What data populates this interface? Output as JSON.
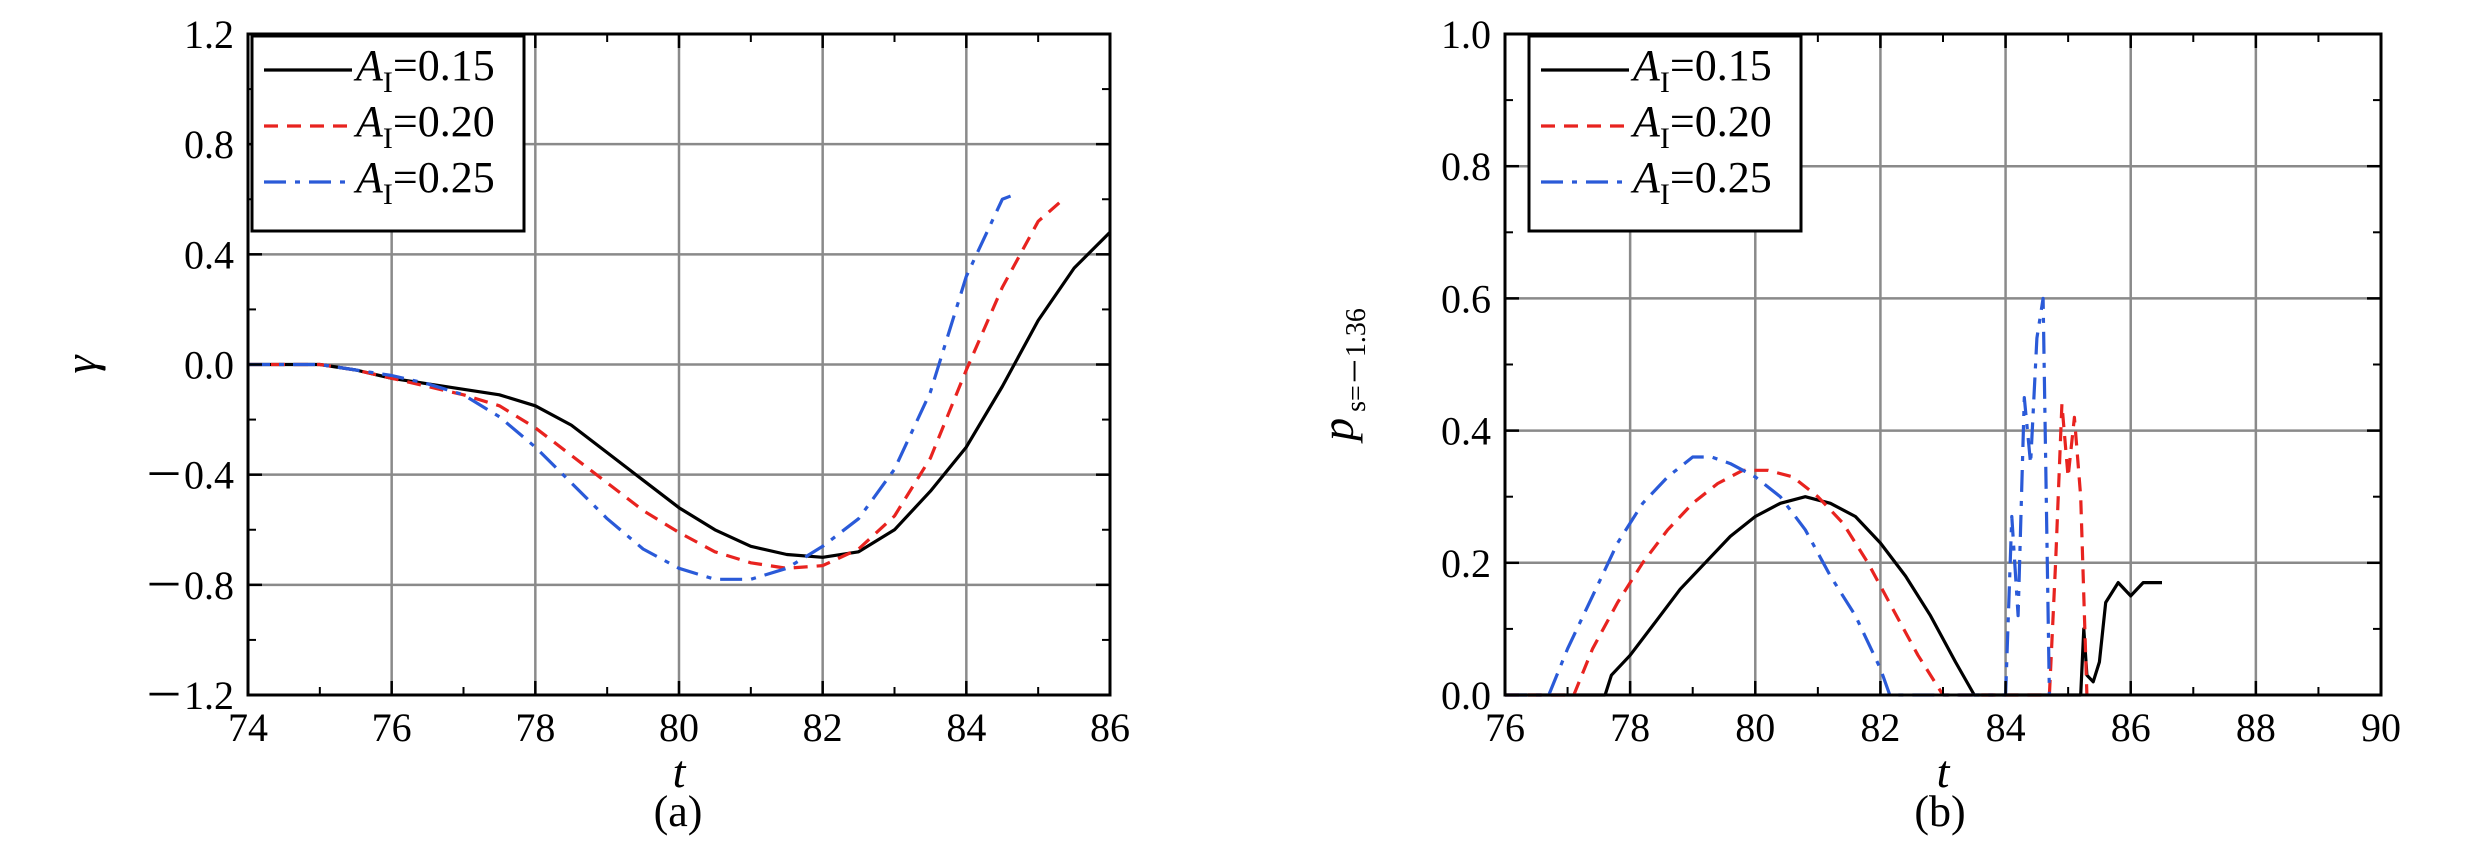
{
  "chart_data": [
    {
      "type": "line",
      "panel": "(a)",
      "xlabel": "t",
      "ylabel": "γ",
      "xlim": [
        74,
        86
      ],
      "ylim": [
        -1.2,
        1.2
      ],
      "xticks": [
        74,
        76,
        78,
        80,
        82,
        84,
        86
      ],
      "xtick_labels": [
        "74",
        "76",
        "78",
        "80",
        "82",
        "84",
        "86"
      ],
      "yticks": [
        1.2,
        0.8,
        0.4,
        0.0,
        -0.4,
        -0.8,
        -1.2
      ],
      "ytick_labels": [
        "1.2",
        "0.8",
        "0.4",
        "0.0",
        "－0.4",
        "－0.8",
        "－1.2"
      ],
      "grid": true,
      "legend": "top-left",
      "legend_entries": [
        {
          "var": "A",
          "sub": "I",
          "value": "=0.15"
        },
        {
          "var": "A",
          "sub": "I",
          "value": "=0.20"
        },
        {
          "var": "A",
          "sub": "I",
          "value": "=0.25"
        }
      ],
      "series": [
        {
          "name": "A_I=0.15",
          "color": "#000000",
          "dash": "solid",
          "x": [
            74,
            75,
            75.5,
            76,
            76.5,
            77,
            77.5,
            78,
            78.5,
            79,
            79.5,
            80,
            80.5,
            81,
            81.5,
            82,
            82.5,
            83,
            83.5,
            84,
            84.5,
            85,
            85.5,
            86
          ],
          "y": [
            0,
            0,
            -0.02,
            -0.05,
            -0.07,
            -0.09,
            -0.11,
            -0.15,
            -0.22,
            -0.32,
            -0.42,
            -0.52,
            -0.6,
            -0.66,
            -0.69,
            -0.7,
            -0.68,
            -0.6,
            -0.46,
            -0.3,
            -0.08,
            0.16,
            0.35,
            0.48
          ]
        },
        {
          "name": "A_I=0.20",
          "color": "#e8231f",
          "dash": "dash",
          "x": [
            74,
            75,
            75.5,
            76,
            76.5,
            77,
            77.5,
            78,
            78.5,
            79,
            79.5,
            80,
            80.5,
            81,
            81.5,
            82,
            82.5,
            83,
            83.5,
            84,
            84.5,
            85,
            85.35
          ],
          "y": [
            0,
            0,
            -0.02,
            -0.05,
            -0.08,
            -0.11,
            -0.15,
            -0.23,
            -0.33,
            -0.43,
            -0.53,
            -0.61,
            -0.68,
            -0.72,
            -0.74,
            -0.73,
            -0.67,
            -0.55,
            -0.34,
            -0.02,
            0.28,
            0.52,
            0.6
          ]
        },
        {
          "name": "A_I=0.25",
          "color": "#2a5ad8",
          "dash": "dashdot",
          "x": [
            74,
            75,
            75.5,
            76,
            76.5,
            77,
            77.5,
            78,
            78.5,
            79,
            79.5,
            80,
            80.5,
            81,
            81.5,
            82,
            82.5,
            83,
            83.5,
            84,
            84.5,
            84.7
          ],
          "y": [
            0,
            0,
            -0.02,
            -0.04,
            -0.07,
            -0.11,
            -0.19,
            -0.3,
            -0.43,
            -0.56,
            -0.67,
            -0.74,
            -0.78,
            -0.78,
            -0.74,
            -0.66,
            -0.56,
            -0.38,
            -0.1,
            0.32,
            0.6,
            0.62
          ]
        }
      ]
    },
    {
      "type": "line",
      "panel": "(b)",
      "xlabel": "t",
      "ylabel_main": "p",
      "ylabel_sub": "s=－1.36",
      "xlim": [
        76,
        90
      ],
      "ylim": [
        0,
        1.0
      ],
      "xticks": [
        76,
        78,
        80,
        82,
        84,
        86,
        88,
        90
      ],
      "xtick_labels": [
        "76",
        "78",
        "80",
        "82",
        "84",
        "86",
        "88",
        "90"
      ],
      "yticks": [
        1.0,
        0.8,
        0.6,
        0.4,
        0.2,
        0.0
      ],
      "ytick_labels": [
        "1.0",
        "0.8",
        "0.6",
        "0.4",
        "0.2",
        "0.0"
      ],
      "grid": true,
      "legend": "top-left",
      "legend_entries": [
        {
          "var": "A",
          "sub": "I",
          "value": "=0.15"
        },
        {
          "var": "A",
          "sub": "I",
          "value": "=0.20"
        },
        {
          "var": "A",
          "sub": "I",
          "value": "=0.25"
        }
      ],
      "series": [
        {
          "name": "A_I=0.15",
          "color": "#000000",
          "dash": "solid",
          "x": [
            76,
            77.6,
            77.7,
            78,
            78.4,
            78.8,
            79.2,
            79.6,
            80,
            80.4,
            80.8,
            81.2,
            81.6,
            82,
            82.4,
            82.8,
            83.2,
            83.5,
            84,
            85.2,
            85.25,
            85.3,
            85.4,
            85.5,
            85.6,
            85.8,
            86,
            86.2,
            86.5
          ],
          "y": [
            0,
            0,
            0.03,
            0.06,
            0.11,
            0.16,
            0.2,
            0.24,
            0.27,
            0.29,
            0.3,
            0.29,
            0.27,
            0.23,
            0.18,
            0.12,
            0.05,
            0,
            0,
            0,
            0.1,
            0.03,
            0.02,
            0.05,
            0.14,
            0.17,
            0.15,
            0.17,
            0.17
          ]
        },
        {
          "name": "A_I=0.20",
          "color": "#e8231f",
          "dash": "dash",
          "x": [
            76,
            77.1,
            77.4,
            77.8,
            78.2,
            78.6,
            79,
            79.4,
            79.8,
            80.2,
            80.6,
            81,
            81.4,
            81.8,
            82.2,
            82.6,
            83,
            84.7,
            84.8,
            84.9,
            85,
            85.1,
            85.2,
            85.3
          ],
          "y": [
            0,
            0,
            0.07,
            0.14,
            0.2,
            0.25,
            0.29,
            0.32,
            0.34,
            0.34,
            0.33,
            0.3,
            0.26,
            0.2,
            0.13,
            0.06,
            0,
            0,
            0.2,
            0.44,
            0.33,
            0.42,
            0.3,
            0.0
          ]
        },
        {
          "name": "A_I=0.25",
          "color": "#2a5ad8",
          "dash": "dashdot",
          "x": [
            76,
            76.7,
            77,
            77.4,
            77.8,
            78.2,
            78.6,
            79,
            79.3,
            79.6,
            80,
            80.4,
            80.8,
            81.2,
            81.6,
            82,
            82.15,
            84,
            84.1,
            84.2,
            84.3,
            84.4,
            84.5,
            84.6,
            84.7
          ],
          "y": [
            0,
            0,
            0.07,
            0.15,
            0.23,
            0.29,
            0.33,
            0.36,
            0.36,
            0.35,
            0.33,
            0.3,
            0.25,
            0.18,
            0.12,
            0.04,
            0,
            0,
            0.27,
            0.12,
            0.45,
            0.35,
            0.54,
            0.6,
            0.0
          ]
        }
      ]
    }
  ]
}
